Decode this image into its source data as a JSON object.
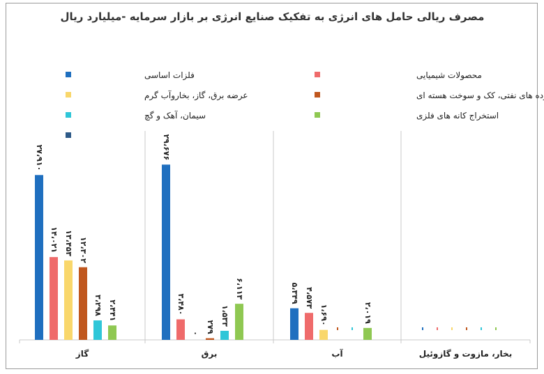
{
  "chart_data": {
    "type": "bar",
    "title": "مصرف ریالی حامل های انرژی به تفکیک صنایع انرژی بر بازار سرمایه -میلیارد ریال",
    "xlabel": "",
    "ylabel": "",
    "grid": false,
    "legend_position": "top",
    "categories": [
      "گاز",
      "برق",
      "آب",
      "بخار، مازوت و گازوئیل"
    ],
    "series": [
      {
        "name": "فلزات اساسی",
        "color": "#1f6fbf",
        "values": [
          27910,
          29676,
          5349,
          0
        ],
        "labels": [
          "۲۷،۹۱۰",
          "۲۹،۶۷۶",
          "۵،۳۴۹",
          ""
        ]
      },
      {
        "name": "محصولات شیمیایی",
        "color": "#ef6b6b",
        "values": [
          14021,
          3480,
          4573,
          0
        ],
        "labels": [
          "۱۴،۰۲۱",
          "۳،۴۸۰",
          "۴،۵۷۳",
          ""
        ]
      },
      {
        "name": "عرضه برق، گاز، بخاروآب گرم",
        "color": "#f9d76b",
        "values": [
          13453,
          0,
          1690,
          0
        ],
        "labels": [
          "۱۳،۴۵۳",
          "۰",
          "۱،۶۹۰",
          ""
        ]
      },
      {
        "name": "فراورده های نفتی، کک و سوخت هسته ای",
        "color": "#c0571e",
        "values": [
          12302,
          279,
          0,
          0
        ],
        "labels": [
          "۱۲،۳۰۲",
          "۲۷۹",
          "",
          ""
        ]
      },
      {
        "name": "سیمان، آهک و گچ",
        "color": "#2fc6d8",
        "values": [
          3298,
          1533,
          0,
          0
        ],
        "labels": [
          "۳،۲۹۸",
          "۱،۵۳۳",
          "",
          ""
        ]
      },
      {
        "name": "استخراج کانه های فلزی",
        "color": "#8fc852",
        "values": [
          2441,
          6113,
          2019,
          0
        ],
        "labels": [
          "۲،۴۴۱",
          "۶،۱۱۳",
          "۲،۰۱۹",
          ""
        ]
      },
      {
        "name": "",
        "color": "#2e5a88",
        "values": [
          0,
          0,
          0,
          0
        ],
        "labels": [
          "",
          "",
          "",
          ""
        ]
      }
    ],
    "ylim": [
      0,
      30000
    ]
  }
}
